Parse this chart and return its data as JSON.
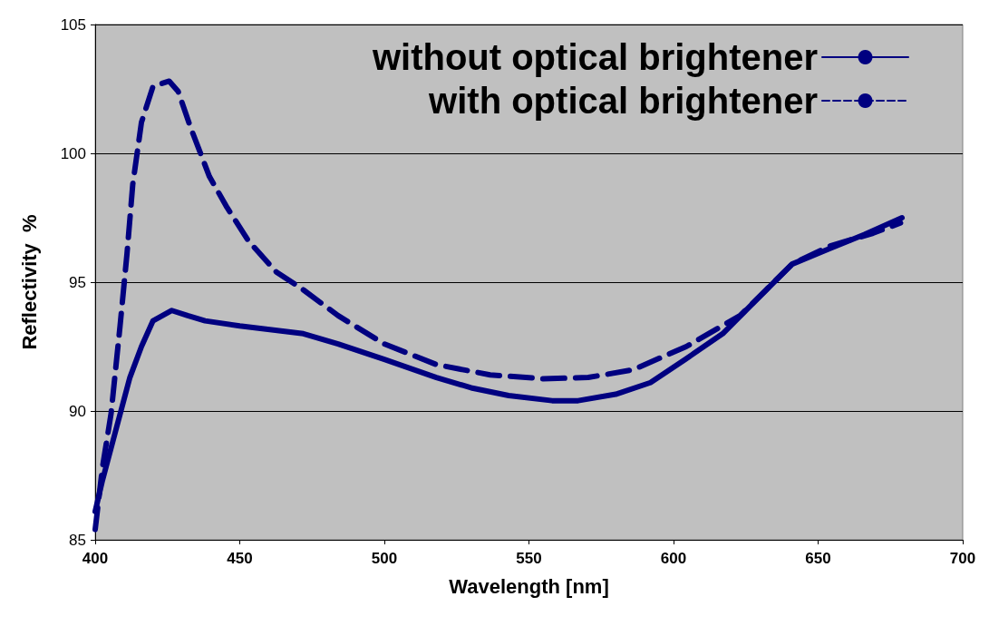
{
  "chart_data": {
    "type": "line",
    "xlabel": "Wavelength [nm]",
    "ylabel": "Reflectivity  %",
    "xlim": [
      400,
      700
    ],
    "xticks": [
      400,
      450,
      500,
      550,
      600,
      650,
      700
    ],
    "ylim": [
      85,
      105
    ],
    "yticks": [
      85,
      90,
      95,
      100,
      105
    ],
    "grid": "y",
    "legend": "top right",
    "marker": "none",
    "series": [
      {
        "name": "without optical brightener",
        "color": "#000080",
        "line_style": "solid",
        "x": [
          400,
          402.5,
          407,
          412,
          416,
          420,
          426.5,
          432,
          438,
          450,
          472,
          484,
          500,
          518,
          530,
          543,
          558,
          567,
          580,
          592,
          604,
          617,
          629,
          641,
          654,
          666,
          679
        ],
        "values": [
          86.1,
          87.3,
          89.2,
          91.3,
          92.5,
          93.5,
          93.9,
          93.7,
          93.5,
          93.3,
          93.0,
          92.6,
          92.0,
          91.3,
          90.9,
          90.6,
          90.4,
          90.4,
          90.65,
          91.1,
          92.0,
          93.0,
          94.35,
          95.7,
          96.3,
          96.85,
          97.5
        ]
      },
      {
        "name": "with optical brightener",
        "color": "#000080",
        "line_style": "dashed",
        "x": [
          400,
          402.5,
          405.5,
          408.6,
          411,
          413,
          416,
          420,
          425.6,
          428.7,
          433,
          439.5,
          445.6,
          453,
          462.6,
          472,
          484,
          500,
          518,
          536.6,
          555,
          570.5,
          586,
          604.4,
          623,
          632,
          641,
          654,
          669,
          678.5
        ],
        "values": [
          85.4,
          87.8,
          89.9,
          93.3,
          96.1,
          98.8,
          101.2,
          102.6,
          102.8,
          102.4,
          101.0,
          99.1,
          97.9,
          96.6,
          95.4,
          94.7,
          93.7,
          92.6,
          91.8,
          91.4,
          91.25,
          91.3,
          91.6,
          92.5,
          93.7,
          94.7,
          95.7,
          96.4,
          96.9,
          97.3
        ]
      }
    ]
  }
}
